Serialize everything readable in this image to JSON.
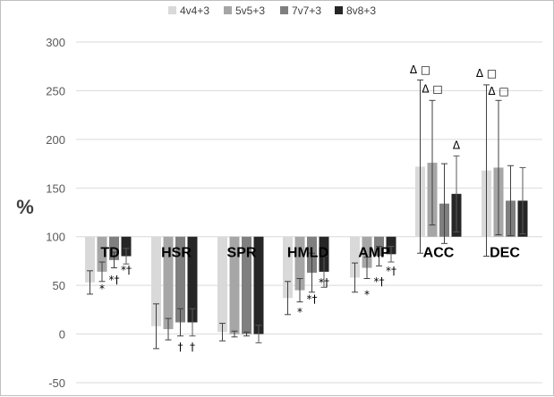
{
  "chart_data": {
    "type": "bar",
    "title": "",
    "xlabel": "",
    "ylabel": "%",
    "ylim": [
      -50,
      300
    ],
    "yticks": [
      -50,
      0,
      50,
      100,
      150,
      200,
      250,
      300
    ],
    "baseline": 100,
    "grid": true,
    "legend_position": "top",
    "categories": [
      "TD",
      "HSR",
      "SPR",
      "HMLD",
      "AMP",
      "ACC",
      "DEC"
    ],
    "series": [
      {
        "name": "4v4+3",
        "color": "#d9d9d9",
        "values": [
          53,
          8,
          2,
          37,
          58,
          172,
          168
        ],
        "errors": [
          12,
          23,
          9,
          17,
          15,
          89,
          88
        ]
      },
      {
        "name": "5v5+3",
        "color": "#a6a6a6",
        "values": [
          64,
          5,
          0,
          45,
          68,
          176,
          171
        ],
        "errors": [
          10,
          11,
          3,
          12,
          11,
          64,
          69
        ]
      },
      {
        "name": "7v7+3",
        "color": "#7f7f7f",
        "values": [
          76,
          12,
          0,
          63,
          80,
          134,
          137
        ],
        "errors": [
          8,
          14,
          2,
          20,
          10,
          41,
          36
        ]
      },
      {
        "name": "8v8+3",
        "color": "#262626",
        "values": [
          80,
          12,
          0,
          64,
          82,
          144,
          137
        ],
        "errors": [
          8,
          14,
          9,
          16,
          8,
          39,
          34
        ]
      }
    ],
    "annotations": [
      {
        "category": "TD",
        "series": "5v5+3",
        "text": "*",
        "y": 43
      },
      {
        "category": "TD",
        "series": "7v7+3",
        "text": "*†",
        "y": 52
      },
      {
        "category": "TD",
        "series": "8v8+3",
        "text": "*†",
        "y": 62
      },
      {
        "category": "HSR",
        "series": "7v7+3",
        "text": "†",
        "y": -17
      },
      {
        "category": "HSR",
        "series": "8v8+3",
        "text": "†",
        "y": -17
      },
      {
        "category": "HMLD",
        "series": "5v5+3",
        "text": "*",
        "y": 19
      },
      {
        "category": "HMLD",
        "series": "7v7+3",
        "text": "*†",
        "y": 32
      },
      {
        "category": "HMLD",
        "series": "8v8+3",
        "text": "*†",
        "y": 49
      },
      {
        "category": "AMP",
        "series": "5v5+3",
        "text": "*",
        "y": 37
      },
      {
        "category": "AMP",
        "series": "7v7+3",
        "text": "*†",
        "y": 50
      },
      {
        "category": "AMP",
        "series": "8v8+3",
        "text": "*†",
        "y": 61
      },
      {
        "category": "ACC",
        "series": "4v4+3",
        "text": "Δ □",
        "y": 268
      },
      {
        "category": "ACC",
        "series": "5v5+3",
        "text": "Δ □",
        "y": 248
      },
      {
        "category": "ACC",
        "series": "8v8+3",
        "text": "Δ",
        "y": 190
      },
      {
        "category": "DEC",
        "series": "4v4+3",
        "text": "Δ □",
        "y": 264
      },
      {
        "category": "DEC",
        "series": "5v5+3",
        "text": "Δ □",
        "y": 246
      }
    ]
  }
}
